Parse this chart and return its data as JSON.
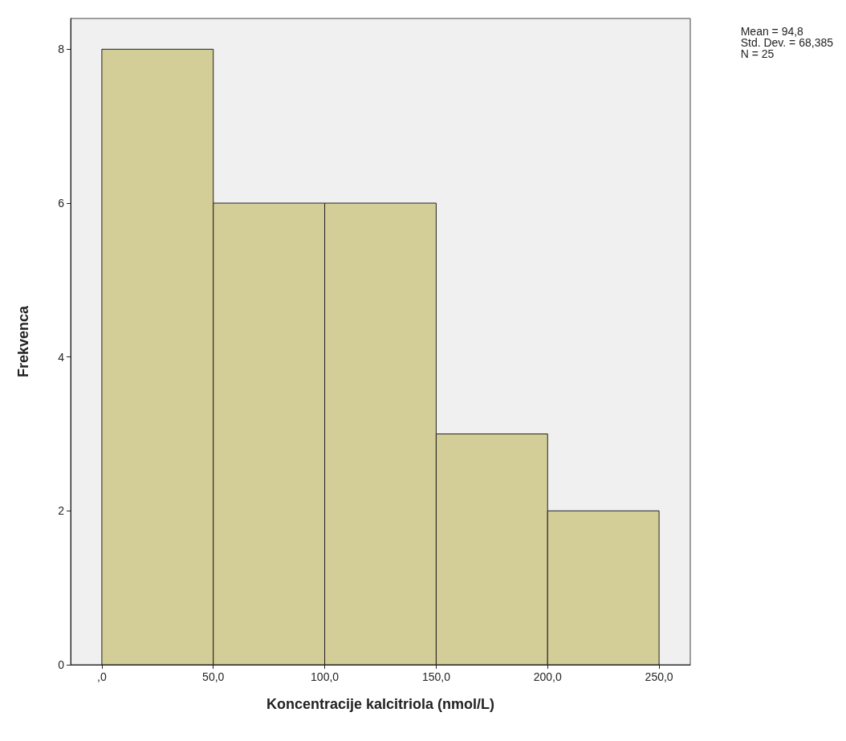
{
  "chart_data": {
    "type": "histogram",
    "xlabel": "Koncentracije kalcitriola (nmol/L)",
    "ylabel": "Frekvenca",
    "bins": [
      0,
      50,
      100,
      150,
      200,
      250
    ],
    "values": [
      8,
      6,
      6,
      3,
      2
    ],
    "color": "#d3ce97",
    "xlim": [
      -14,
      264
    ],
    "xticks": [
      {
        "value": 0,
        "label": ",0"
      },
      {
        "value": 50,
        "label": "50,0"
      },
      {
        "value": 100,
        "label": "100,0"
      },
      {
        "value": 150,
        "label": "150,0"
      },
      {
        "value": 200,
        "label": "200,0"
      },
      {
        "value": 250,
        "label": "250,0"
      }
    ],
    "ylim": [
      0,
      8.4
    ],
    "yticks": [
      0,
      2,
      4,
      6,
      8
    ],
    "annotations": [
      "Mean = 94,8",
      "Std. Dev. = 68,385",
      "N = 25"
    ]
  }
}
